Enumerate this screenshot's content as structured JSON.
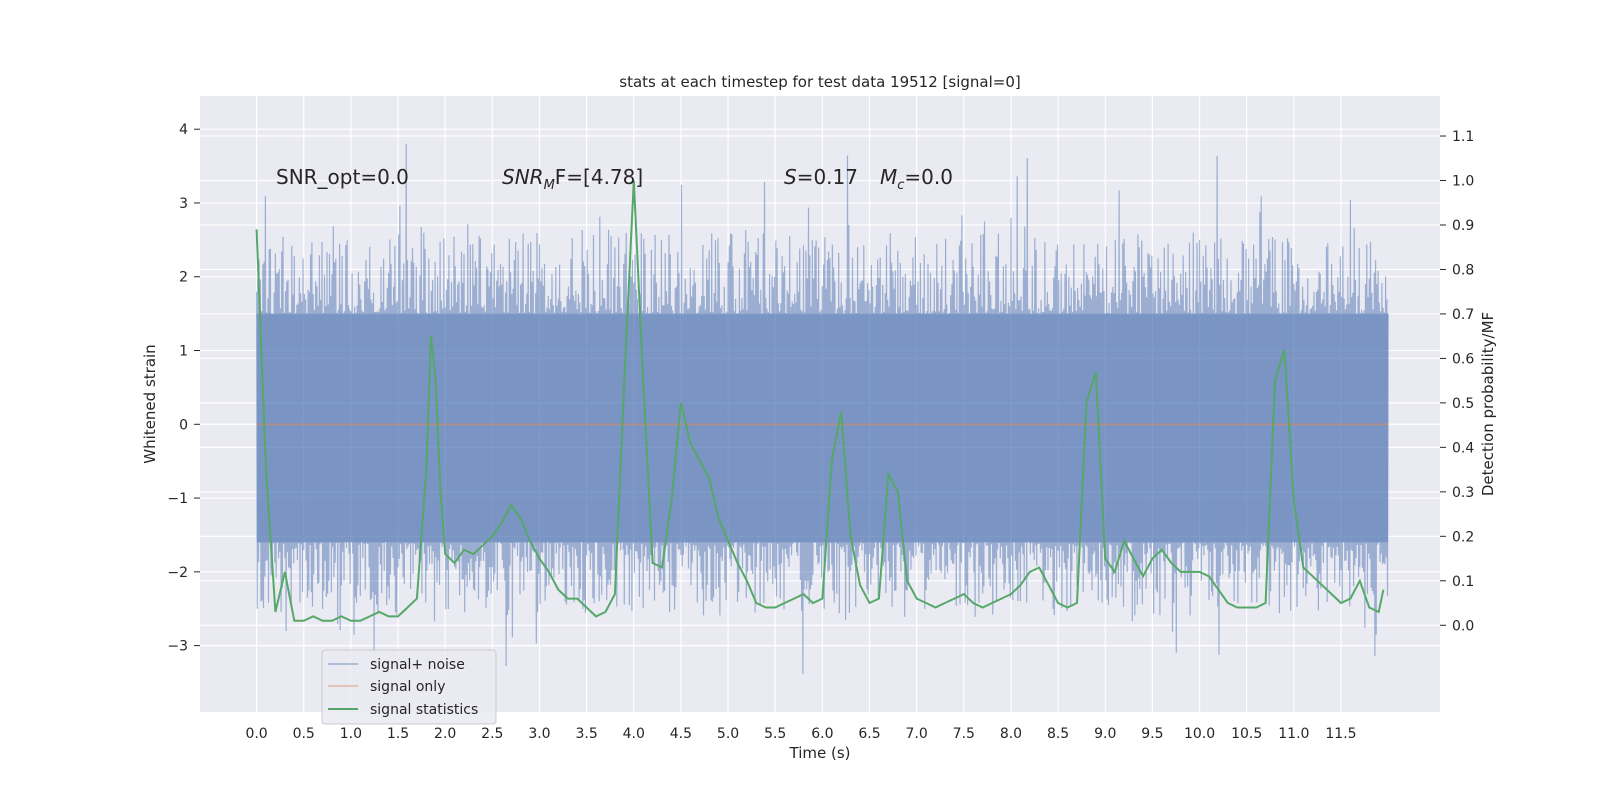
{
  "chart_data": {
    "type": "line",
    "title": "stats at each timestep for test data 19512 [signal=0]",
    "xlabel": "Time (s)",
    "ylabel": "Whitened strain",
    "y2label": "Detection probability/MF",
    "xlim": [
      -0.6,
      12.55
    ],
    "ylim": [
      -3.9,
      4.45
    ],
    "y2lim": [
      -0.195,
      1.19
    ],
    "x_ticks": [
      0.0,
      0.5,
      1.0,
      1.5,
      2.0,
      2.5,
      3.0,
      3.5,
      4.0,
      4.5,
      5.0,
      5.5,
      6.0,
      6.5,
      7.0,
      7.5,
      8.0,
      8.5,
      9.0,
      9.5,
      10.0,
      10.5,
      11.0,
      11.5
    ],
    "x_tick_labels": [
      "0.0",
      "0.5",
      "1.0",
      "1.5",
      "2.0",
      "2.5",
      "3.0",
      "3.5",
      "4.0",
      "4.5",
      "5.0",
      "5.5",
      "6.0",
      "6.5",
      "7.0",
      "7.5",
      "8.0",
      "8.5",
      "9.0",
      "9.5",
      "10.0",
      "10.5",
      "11.0",
      "11.5"
    ],
    "y_ticks": [
      -3,
      -2,
      -1,
      0,
      1,
      2,
      3,
      4
    ],
    "y_tick_labels": [
      "−3",
      "−2",
      "−1",
      "0",
      "1",
      "2",
      "3",
      "4"
    ],
    "y2_ticks": [
      0.0,
      0.1,
      0.2,
      0.3,
      0.4,
      0.5,
      0.6,
      0.7,
      0.8,
      0.9,
      1.0,
      1.1
    ],
    "y2_tick_labels": [
      "0.0",
      "0.1",
      "0.2",
      "0.3",
      "0.4",
      "0.5",
      "0.6",
      "0.7",
      "0.8",
      "0.9",
      "1.0",
      "1.1"
    ],
    "grid": true,
    "legend_position": "lower-left",
    "annotations": [
      {
        "text": "SNR_opt=0.0",
        "x": 0.2,
        "y": 3.3
      },
      {
        "text": "SNR_MF=[4.78]",
        "x": 2.6,
        "y": 3.3
      },
      {
        "text": "S=0.17   M_c=0.0",
        "x": 5.6,
        "y": 3.3
      }
    ],
    "annotation_parts": {
      "snr_opt": "SNR_opt=0.0",
      "snr_mf_sym": "SNR",
      "snr_mf_sub": "M",
      "snr_mf_rest": "F=[4.78]",
      "s_sym": "S",
      "s_rest": "=0.17",
      "mc_sym": "M",
      "mc_sub": "c",
      "mc_rest": "=0.0"
    },
    "series": [
      {
        "name": "signal+ noise",
        "color": "#4c72b0",
        "axis": "left",
        "kind": "noise",
        "x_range": [
          0.0,
          12.0
        ],
        "core_band": [
          -1.6,
          1.5
        ],
        "extremes": [
          -3.5,
          4.1
        ]
      },
      {
        "name": "signal only",
        "color": "#dd8452",
        "axis": "left",
        "x": [
          0.0,
          12.0
        ],
        "y": [
          0.0,
          0.0
        ]
      },
      {
        "name": "signal statistics",
        "color": "#55a868",
        "axis": "right",
        "x": [
          0.0,
          0.1,
          0.2,
          0.3,
          0.4,
          0.5,
          0.6,
          0.7,
          0.8,
          0.9,
          1.0,
          1.1,
          1.2,
          1.3,
          1.4,
          1.5,
          1.6,
          1.7,
          1.8,
          1.85,
          1.9,
          1.95,
          2.0,
          2.1,
          2.2,
          2.3,
          2.4,
          2.5,
          2.6,
          2.7,
          2.8,
          2.9,
          3.0,
          3.1,
          3.2,
          3.3,
          3.4,
          3.5,
          3.6,
          3.7,
          3.8,
          3.9,
          4.0,
          4.1,
          4.2,
          4.3,
          4.4,
          4.5,
          4.6,
          4.7,
          4.8,
          4.9,
          5.0,
          5.1,
          5.2,
          5.3,
          5.4,
          5.5,
          5.6,
          5.7,
          5.8,
          5.9,
          6.0,
          6.1,
          6.2,
          6.3,
          6.4,
          6.5,
          6.6,
          6.7,
          6.8,
          6.9,
          7.0,
          7.1,
          7.2,
          7.3,
          7.4,
          7.5,
          7.6,
          7.7,
          7.8,
          7.9,
          8.0,
          8.1,
          8.2,
          8.3,
          8.4,
          8.5,
          8.6,
          8.7,
          8.8,
          8.9,
          9.0,
          9.1,
          9.2,
          9.3,
          9.4,
          9.5,
          9.6,
          9.7,
          9.8,
          9.9,
          10.0,
          10.1,
          10.2,
          10.3,
          10.4,
          10.5,
          10.6,
          10.7,
          10.8,
          10.9,
          11.0,
          11.1,
          11.2,
          11.3,
          11.4,
          11.5,
          11.6,
          11.7,
          11.8,
          11.9,
          11.95
        ],
        "y": [
          0.89,
          0.35,
          0.03,
          0.12,
          0.01,
          0.01,
          0.02,
          0.01,
          0.01,
          0.02,
          0.01,
          0.01,
          0.02,
          0.03,
          0.02,
          0.02,
          0.04,
          0.06,
          0.35,
          0.65,
          0.55,
          0.3,
          0.16,
          0.14,
          0.17,
          0.16,
          0.18,
          0.2,
          0.23,
          0.27,
          0.24,
          0.19,
          0.15,
          0.12,
          0.08,
          0.06,
          0.06,
          0.04,
          0.02,
          0.03,
          0.07,
          0.55,
          1.0,
          0.55,
          0.14,
          0.13,
          0.28,
          0.5,
          0.41,
          0.37,
          0.33,
          0.24,
          0.19,
          0.14,
          0.1,
          0.05,
          0.04,
          0.04,
          0.05,
          0.06,
          0.07,
          0.05,
          0.06,
          0.37,
          0.48,
          0.2,
          0.09,
          0.05,
          0.06,
          0.34,
          0.3,
          0.1,
          0.06,
          0.05,
          0.04,
          0.05,
          0.06,
          0.07,
          0.05,
          0.04,
          0.05,
          0.06,
          0.07,
          0.09,
          0.12,
          0.13,
          0.09,
          0.05,
          0.04,
          0.05,
          0.5,
          0.57,
          0.15,
          0.12,
          0.19,
          0.15,
          0.11,
          0.15,
          0.17,
          0.14,
          0.12,
          0.12,
          0.12,
          0.11,
          0.08,
          0.05,
          0.04,
          0.04,
          0.04,
          0.05,
          0.55,
          0.62,
          0.28,
          0.13,
          0.11,
          0.09,
          0.07,
          0.05,
          0.06,
          0.1,
          0.04,
          0.03,
          0.08
        ]
      }
    ]
  }
}
